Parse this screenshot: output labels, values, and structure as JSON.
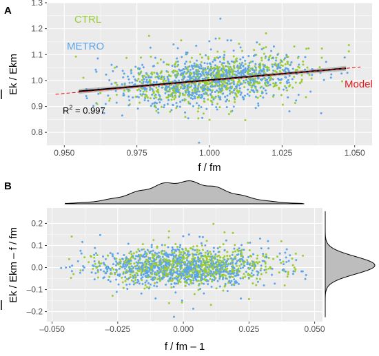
{
  "colors": {
    "ctrl": "#9acd32",
    "metro": "#5da5e8",
    "model": "#e41a1c",
    "panel_bg": "#ebebeb",
    "grid": "#ffffff",
    "fit": "#000000",
    "ribbon": "#999999",
    "density_fill": "#bdbdbd"
  },
  "chart_data": [
    {
      "type": "scatter",
      "panel": "A",
      "xlabel": "f / fm",
      "ylabel": "Ek / Ekm",
      "xlim": [
        0.944,
        1.056
      ],
      "ylim": [
        0.75,
        1.3
      ],
      "xticks": [
        0.95,
        0.975,
        1.0,
        1.025,
        1.05
      ],
      "xtick_labels": [
        "0.950",
        "0.975",
        "1.000",
        "1.025",
        "1.050"
      ],
      "yticks": [
        0.8,
        0.9,
        1.0,
        1.1,
        1.2,
        1.3
      ],
      "ytick_labels": [
        "0.8",
        "0.9",
        "1.0",
        "1.1",
        "1.2",
        "1.3"
      ],
      "grid": true,
      "series": [
        {
          "name": "CTRL",
          "color": "#9acd32",
          "count": 650,
          "x_mean": 1.001,
          "x_sd": 0.016,
          "y_slope": 1.0,
          "y_sd": 0.055
        },
        {
          "name": "METRO",
          "color": "#5da5e8",
          "count": 900,
          "x_mean": 1.0,
          "x_sd": 0.016,
          "y_slope": 1.0,
          "y_sd": 0.055
        }
      ],
      "fit_line": {
        "x": [
          0.955,
          1.047
        ],
        "y": [
          0.958,
          1.047
        ]
      },
      "model_line": {
        "label": "Model",
        "x": [
          0.947,
          1.052
        ],
        "y": [
          0.947,
          1.052
        ]
      },
      "annotation": {
        "r2_prefix": "R",
        "r2_sup": "2",
        "r2_rest": " = 0.997"
      },
      "legend": [
        "CTRL",
        "METRO"
      ]
    },
    {
      "type": "scatter",
      "panel": "B",
      "xlabel": "f / fm – 1",
      "ylabel": "Ek / Ekm – f / fm",
      "xlim": [
        -0.052,
        0.053
      ],
      "ylim": [
        -0.245,
        0.27
      ],
      "xticks": [
        -0.05,
        -0.025,
        0.0,
        0.025,
        0.05
      ],
      "xtick_labels": [
        "–0.050",
        "–0.025",
        "0.000",
        "0.025",
        "0.050"
      ],
      "yticks": [
        -0.2,
        -0.1,
        0.0,
        0.1,
        0.2
      ],
      "ytick_labels": [
        "–0.2",
        "–0.1",
        "0.0",
        "0.1",
        "0.2"
      ],
      "grid": true,
      "series": [
        {
          "name": "CTRL",
          "color": "#9acd32",
          "count": 650,
          "x_mean": 0.001,
          "x_sd": 0.016,
          "y_mean": 0.0,
          "y_sd": 0.055
        },
        {
          "name": "METRO",
          "color": "#5da5e8",
          "count": 900,
          "x_mean": 0.0,
          "x_sd": 0.016,
          "y_mean": 0.0,
          "y_sd": 0.055
        }
      ],
      "marginal_x": {
        "type": "density",
        "mean": 0.0,
        "sd": 0.016
      },
      "marginal_y": {
        "type": "density",
        "mean": 0.01,
        "sd": 0.05
      }
    }
  ],
  "panel_labels": {
    "a": "A",
    "b": "B"
  },
  "legend_labels": {
    "ctrl": "CTRL",
    "metro": "METRO"
  },
  "model_label": "Model"
}
